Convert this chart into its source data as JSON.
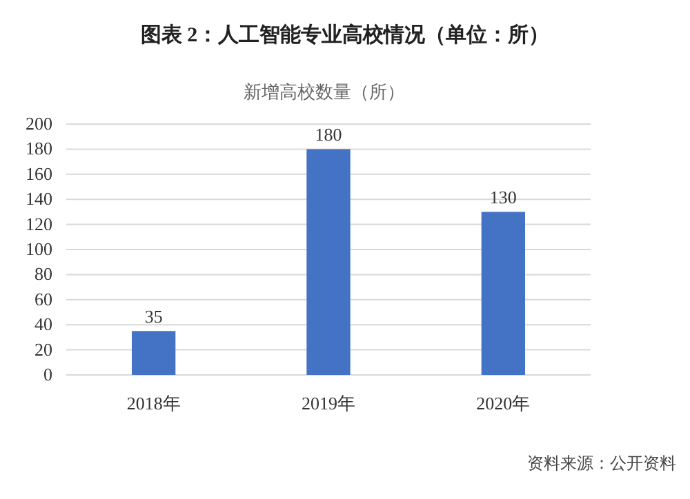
{
  "chart_data": {
    "type": "bar",
    "title": "图表 2：人工智能专业高校情况（单位：所）",
    "subtitle": "新增高校数量（所）",
    "categories": [
      "2018年",
      "2019年",
      "2020年"
    ],
    "values": [
      35,
      180,
      130
    ],
    "color": "#4472c4",
    "ylim": [
      0,
      200
    ],
    "yticks": [
      0,
      20,
      40,
      60,
      80,
      100,
      120,
      140,
      160,
      180,
      200
    ],
    "grid": "y",
    "data_labels": true,
    "annotations": [
      "资料来源：公开资料"
    ]
  }
}
